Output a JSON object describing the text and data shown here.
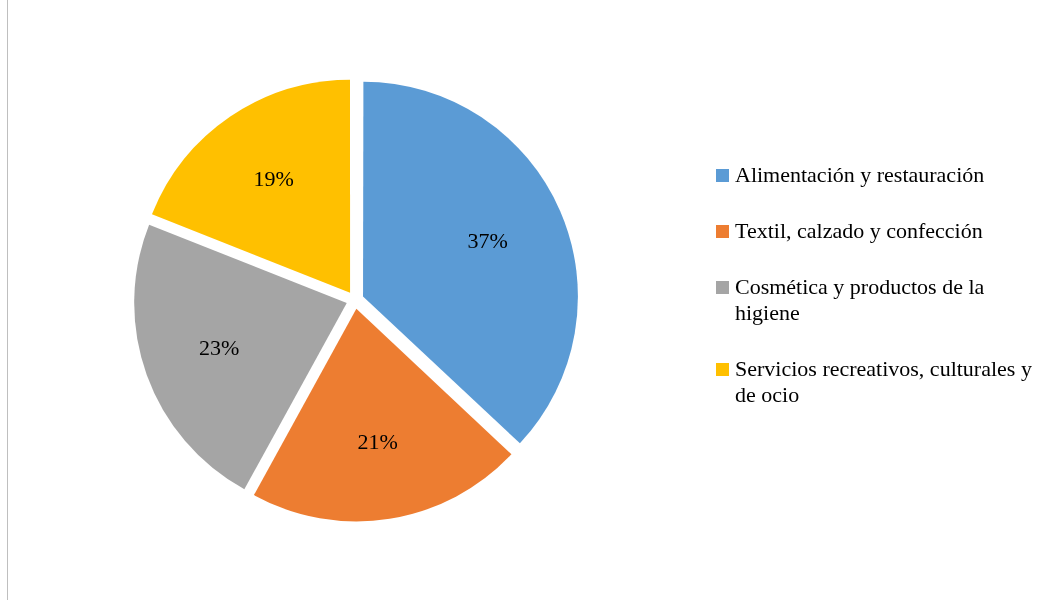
{
  "chart_data": {
    "type": "pie",
    "categories": [
      "Alimentación y restauración",
      "Textil, calzado y confección",
      "Cosmética y productos de la higiene",
      "Servicios recreativos, culturales y de ocio"
    ],
    "values": [
      37,
      21,
      23,
      19
    ],
    "colors": [
      "#5b9bd5",
      "#ed7d31",
      "#a5a5a5",
      "#ffc000"
    ],
    "value_labels": [
      "37%",
      "21%",
      "23%",
      "19%"
    ],
    "legend": "right"
  }
}
